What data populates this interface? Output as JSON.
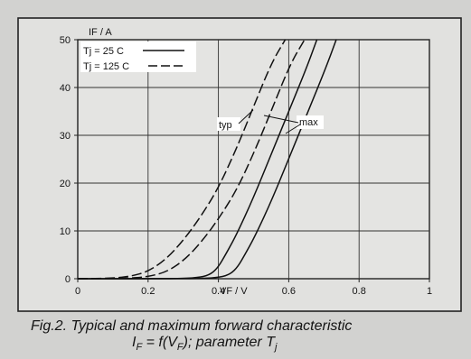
{
  "chart_data": {
    "type": "line",
    "ylabel": "IF / A",
    "xlabel": "VF / V",
    "xlim": [
      0,
      1
    ],
    "ylim": [
      0,
      50
    ],
    "x_ticks": [
      "0",
      "0.2",
      "0.4",
      "0.6",
      "0.8",
      "1"
    ],
    "y_ticks": [
      "0",
      "10",
      "20",
      "30",
      "40",
      "50"
    ],
    "grid": true,
    "legend_position": "top-left",
    "legend": [
      {
        "label": "Tj = 25 C",
        "style": "solid"
      },
      {
        "label": "Tj = 125 C",
        "style": "dashed"
      }
    ],
    "annotations": {
      "typ": "typ",
      "max": "max"
    },
    "series": [
      {
        "name": "Tj = 25 C",
        "curve": "typ",
        "style": "solid",
        "x": [
          0.0,
          0.2,
          0.3,
          0.35,
          0.38,
          0.4,
          0.42,
          0.45,
          0.5,
          0.55,
          0.6,
          0.65,
          0.68
        ],
        "y": [
          0.0,
          0.0,
          0.05,
          0.3,
          1.0,
          2.5,
          5.0,
          9.0,
          17.0,
          26.0,
          35.0,
          44.0,
          50.0
        ]
      },
      {
        "name": "Tj = 25 C",
        "curve": "max",
        "style": "solid",
        "x": [
          0.0,
          0.2,
          0.3,
          0.35,
          0.38,
          0.4,
          0.42,
          0.45,
          0.5,
          0.55,
          0.6,
          0.65,
          0.68
        ],
        "y": [
          0.0,
          0.0,
          0.05,
          0.3,
          1.0,
          2.5,
          5.0,
          9.0,
          17.0,
          26.0,
          35.0,
          44.0,
          50.0
        ]
      },
      {
        "name": "Tj = 125 C",
        "curve": "typ",
        "style": "dashed",
        "x": [
          0.0,
          0.1,
          0.15,
          0.2,
          0.25,
          0.3,
          0.35,
          0.4,
          0.45,
          0.5,
          0.55,
          0.59
        ],
        "y": [
          0.0,
          0.1,
          0.5,
          1.5,
          4.0,
          8.0,
          13.0,
          19.0,
          27.0,
          36.0,
          45.0,
          50.0
        ]
      },
      {
        "name": "Tj = 125 C",
        "curve": "max",
        "style": "dashed",
        "x": [
          0.0,
          0.1,
          0.15,
          0.2,
          0.25,
          0.3,
          0.35,
          0.4,
          0.45,
          0.5,
          0.55,
          0.59
        ],
        "y": [
          0.0,
          0.1,
          0.5,
          1.5,
          4.0,
          8.0,
          13.0,
          19.0,
          27.0,
          36.0,
          45.0,
          50.0
        ]
      }
    ]
  },
  "caption": {
    "line1": "Fig.2.   Typical and maximum forward characteristic",
    "line2_prefix": "I",
    "line2_sub1": "F",
    "line2_mid": " = f(V",
    "line2_sub2": "F",
    "line2_rest": "); parameter T",
    "line2_sub3": "j"
  }
}
